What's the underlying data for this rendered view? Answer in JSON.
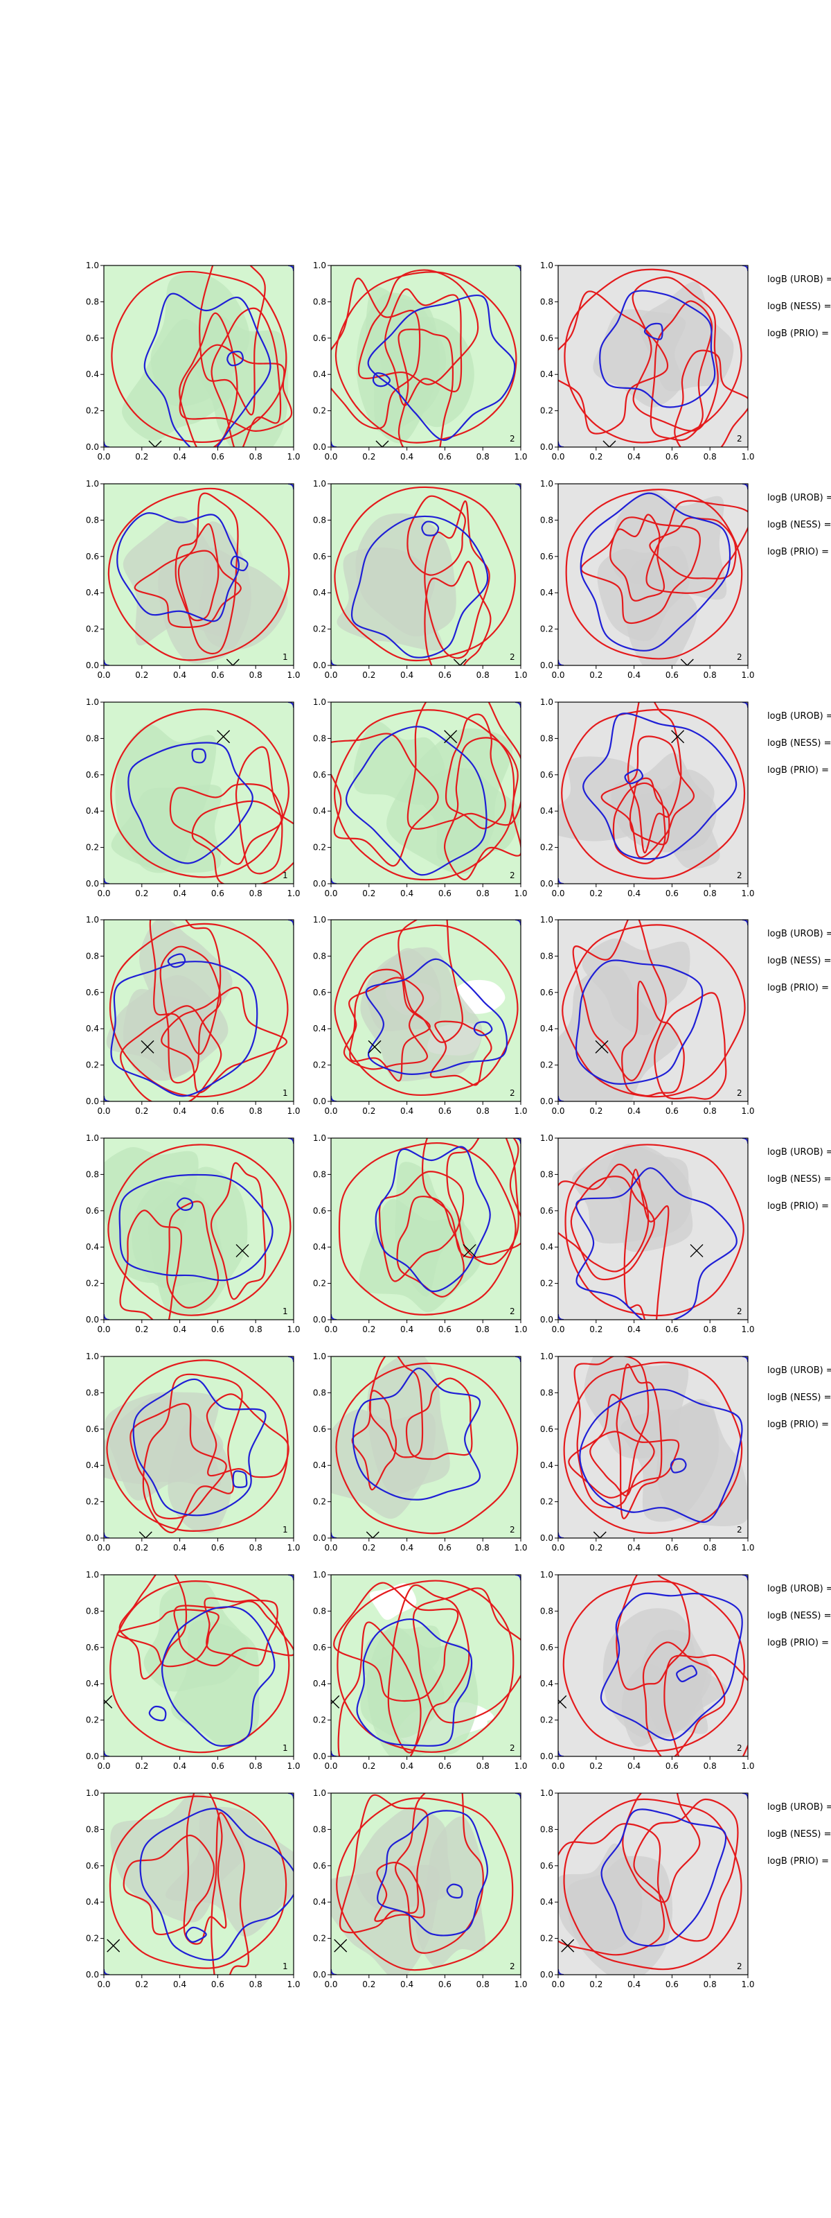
{
  "figure": {
    "grid": {
      "rows": 8,
      "cols": 3
    },
    "colors": {
      "panel_bg_green": "#d4f5d0",
      "panel_bg_gray": "#e4e4e4",
      "fill_white": "#ffffff",
      "region_green": "#bfe6bc",
      "region_gray": "#c8d4c6",
      "region_gray_dark": "#cfcfcf",
      "contour_red": "#e41a1c",
      "contour_blue": "#1f1fd6",
      "marker": "#000000",
      "axis": "#000000"
    },
    "legend_lines": [
      "logB (UROB) =",
      "logB (NESS) =",
      "logB (PRIO) ="
    ]
  },
  "chart_data": [
    {
      "type": "contour",
      "row": 1,
      "marker": [
        0.27,
        0.0
      ],
      "badges": [
        "",
        "2",
        "2"
      ],
      "ticks": [
        "0.0",
        "0.2",
        "0.4",
        "0.6",
        "0.8",
        "1.0"
      ],
      "xlim": [
        0,
        1
      ],
      "ylim": [
        0,
        1
      ],
      "grid": false
    },
    {
      "type": "contour",
      "row": 2,
      "marker": [
        0.68,
        0.0
      ],
      "badges": [
        "1",
        "2",
        "2"
      ],
      "ticks": [
        "0.0",
        "0.2",
        "0.4",
        "0.6",
        "0.8",
        "1.0"
      ],
      "xlim": [
        0,
        1
      ],
      "ylim": [
        0,
        1
      ],
      "grid": false
    },
    {
      "type": "contour",
      "row": 3,
      "marker": [
        0.63,
        0.81
      ],
      "badges": [
        "1",
        "2",
        "2"
      ],
      "ticks": [
        "0.0",
        "0.2",
        "0.4",
        "0.6",
        "0.8",
        "1.0"
      ],
      "xlim": [
        0,
        1
      ],
      "ylim": [
        0,
        1
      ],
      "grid": false
    },
    {
      "type": "contour",
      "row": 4,
      "marker": [
        0.23,
        0.3
      ],
      "badges": [
        "1",
        "2",
        "2"
      ],
      "ticks": [
        "0.0",
        "0.2",
        "0.4",
        "0.6",
        "0.8",
        "1.0"
      ],
      "xlim": [
        0,
        1
      ],
      "ylim": [
        0,
        1
      ],
      "grid": false
    },
    {
      "type": "contour",
      "row": 5,
      "marker": [
        0.73,
        0.38
      ],
      "badges": [
        "1",
        "2",
        "2"
      ],
      "ticks": [
        "0.0",
        "0.2",
        "0.4",
        "0.6",
        "0.8",
        "1.0"
      ],
      "xlim": [
        0,
        1
      ],
      "ylim": [
        0,
        1
      ],
      "grid": false
    },
    {
      "type": "contour",
      "row": 6,
      "marker": [
        0.22,
        0.0
      ],
      "badges": [
        "1",
        "2",
        "2"
      ],
      "ticks": [
        "0.0",
        "0.2",
        "0.4",
        "0.6",
        "0.8",
        "1.0"
      ],
      "xlim": [
        0,
        1
      ],
      "ylim": [
        0,
        1
      ],
      "grid": false
    },
    {
      "type": "contour",
      "row": 7,
      "marker": [
        0.01,
        0.3
      ],
      "badges": [
        "1",
        "2",
        "2"
      ],
      "ticks": [
        "0.0",
        "0.2",
        "0.4",
        "0.6",
        "0.8",
        "1.0"
      ],
      "xlim": [
        0,
        1
      ],
      "ylim": [
        0,
        1
      ],
      "grid": false
    },
    {
      "type": "contour",
      "row": 8,
      "marker": [
        0.05,
        0.16
      ],
      "badges": [
        "1",
        "2",
        "2"
      ],
      "ticks": [
        "0.0",
        "0.2",
        "0.4",
        "0.6",
        "0.8",
        "1.0"
      ],
      "xlim": [
        0,
        1
      ],
      "ylim": [
        0,
        1
      ],
      "grid": false
    }
  ]
}
